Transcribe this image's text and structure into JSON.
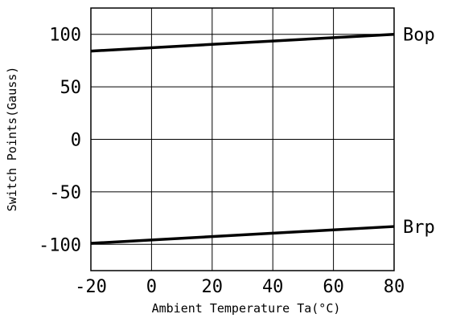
{
  "chart_data": {
    "type": "line",
    "title": "",
    "xlabel": "Ambient Temperature Ta(°C)",
    "ylabel": "Switch Points(Gauss)",
    "xlim": [
      -20,
      80
    ],
    "ylim": [
      -125,
      125
    ],
    "x_ticks": [
      -20,
      0,
      20,
      40,
      60,
      80
    ],
    "y_ticks": [
      100,
      50,
      0,
      -50,
      -100
    ],
    "x_tick_labels": [
      "-20",
      "0",
      "20",
      "40",
      "60",
      "80"
    ],
    "y_tick_labels": [
      "100",
      "50",
      "0",
      "-50",
      "-100"
    ],
    "grid": true,
    "legend": "none",
    "series": [
      {
        "name": "Bop",
        "x": [
          -20,
          80
        ],
        "values": [
          84,
          100
        ],
        "color": "#000000"
      },
      {
        "name": "Brp",
        "x": [
          -20,
          80
        ],
        "values": [
          -99,
          -83
        ],
        "color": "#000000"
      }
    ]
  }
}
